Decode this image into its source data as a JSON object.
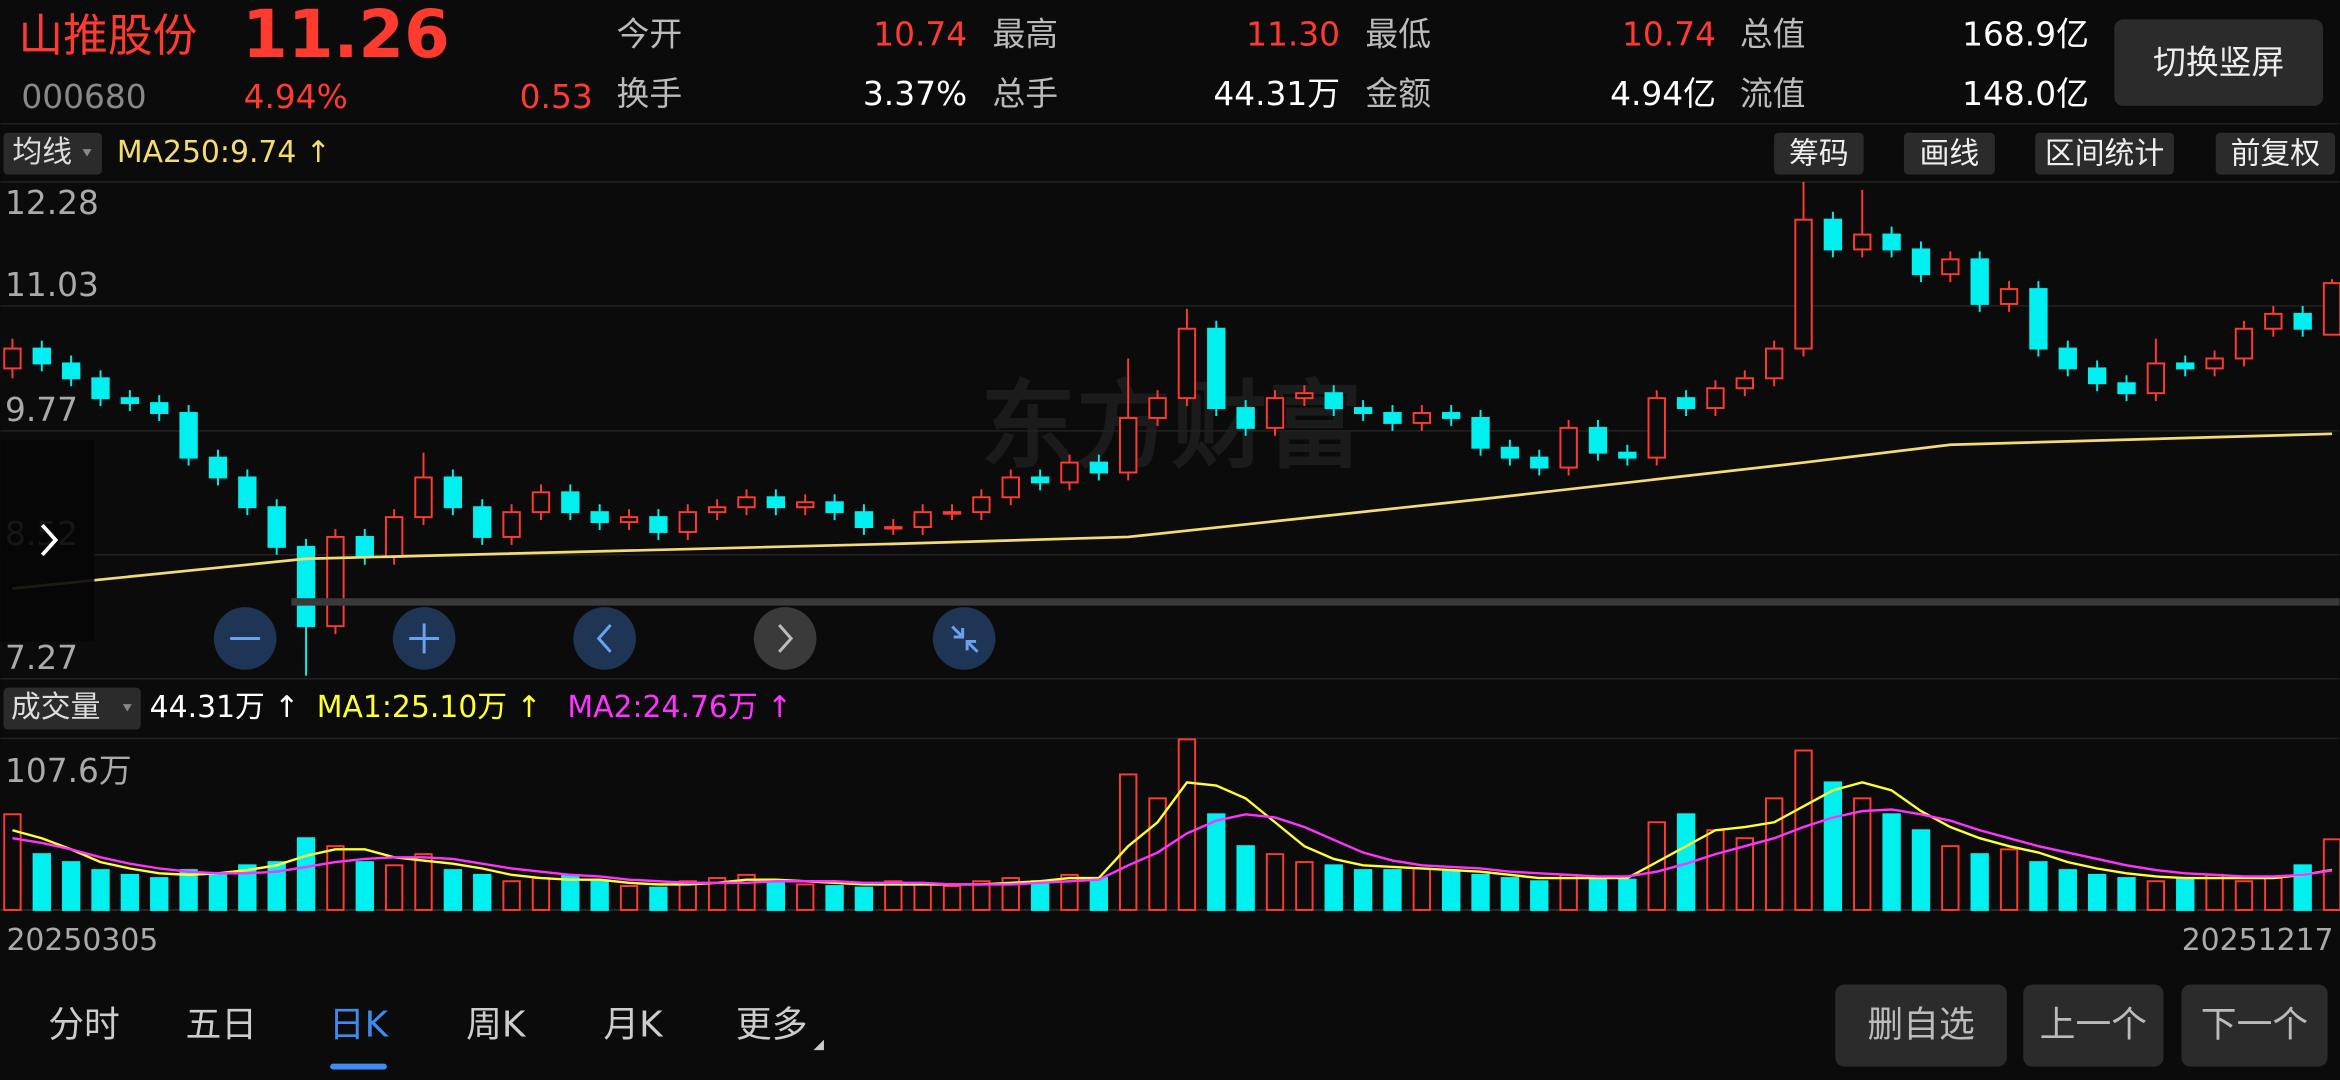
{
  "header": {
    "name": "山推股份",
    "price": "11.26",
    "code": "000680",
    "change_pct": "4.94%",
    "change": "0.53",
    "quote": [
      [
        {
          "label": "今开",
          "value": "10.74",
          "color": "#ff3b30"
        },
        {
          "label": "最高",
          "value": "11.30",
          "color": "#ff3b30"
        },
        {
          "label": "最低",
          "value": "10.74",
          "color": "#ff3b30"
        },
        {
          "label": "总值",
          "value": "168.9亿",
          "color": "#ffffff"
        }
      ],
      [
        {
          "label": "换手",
          "value": "3.37%",
          "color": "#ffffff"
        },
        {
          "label": "总手",
          "value": "44.31万",
          "color": "#ffffff"
        },
        {
          "label": "金额",
          "value": "4.94亿",
          "color": "#ffffff"
        },
        {
          "label": "流值",
          "value": "148.0亿",
          "color": "#ffffff"
        }
      ]
    ],
    "orientation_button": "切换竖屏"
  },
  "toolbar": {
    "indicator": "均线",
    "ma_label": "MA250:9.74 ↑",
    "buttons": [
      "筹码",
      "画线",
      "区间统计",
      "前复权"
    ]
  },
  "watermark": "东方财富",
  "chart_data": {
    "type": "candlestick",
    "up_color": "#ff3b30",
    "down_color": "#00f0f0",
    "ylim": [
      7.27,
      12.28
    ],
    "yticks": [
      7.27,
      8.52,
      9.77,
      11.03,
      12.28
    ],
    "candles": [
      [
        10.4,
        10.7,
        10.3,
        10.6
      ],
      [
        10.6,
        10.68,
        10.37,
        10.45
      ],
      [
        10.45,
        10.53,
        10.22,
        10.3
      ],
      [
        10.3,
        10.38,
        10.02,
        10.1
      ],
      [
        10.1,
        10.18,
        9.97,
        10.05
      ],
      [
        10.05,
        10.13,
        9.87,
        9.95
      ],
      [
        9.95,
        10.03,
        9.42,
        9.5
      ],
      [
        9.5,
        9.58,
        9.22,
        9.3
      ],
      [
        9.3,
        9.38,
        8.92,
        9.0
      ],
      [
        9.0,
        9.08,
        8.52,
        8.6
      ],
      [
        8.6,
        8.68,
        7.3,
        7.8
      ],
      [
        7.8,
        8.78,
        7.72,
        8.7
      ],
      [
        8.7,
        8.78,
        8.42,
        8.5
      ],
      [
        8.5,
        8.98,
        8.42,
        8.9
      ],
      [
        8.9,
        9.55,
        8.82,
        9.3
      ],
      [
        9.3,
        9.38,
        8.92,
        9.0
      ],
      [
        9.0,
        9.08,
        8.62,
        8.7
      ],
      [
        8.7,
        9.03,
        8.62,
        8.95
      ],
      [
        8.95,
        9.23,
        8.87,
        9.15
      ],
      [
        9.15,
        9.23,
        8.87,
        8.95
      ],
      [
        8.95,
        9.03,
        8.77,
        8.85
      ],
      [
        8.85,
        8.98,
        8.77,
        8.9
      ],
      [
        8.9,
        8.98,
        8.67,
        8.75
      ],
      [
        8.75,
        9.03,
        8.67,
        8.95
      ],
      [
        8.95,
        9.08,
        8.87,
        9.0
      ],
      [
        9.0,
        9.18,
        8.92,
        9.1
      ],
      [
        9.1,
        9.18,
        8.92,
        9.0
      ],
      [
        9.0,
        9.13,
        8.92,
        9.05
      ],
      [
        9.05,
        9.13,
        8.87,
        8.95
      ],
      [
        8.95,
        9.03,
        8.72,
        8.8
      ],
      [
        8.8,
        8.88,
        8.72,
        8.8
      ],
      [
        8.8,
        9.03,
        8.72,
        8.95
      ],
      [
        8.95,
        9.03,
        8.87,
        8.95
      ],
      [
        8.95,
        9.18,
        8.87,
        9.1
      ],
      [
        9.1,
        9.38,
        9.02,
        9.3
      ],
      [
        9.3,
        9.38,
        9.17,
        9.25
      ],
      [
        9.25,
        9.53,
        9.17,
        9.45
      ],
      [
        9.45,
        9.53,
        9.27,
        9.35
      ],
      [
        9.35,
        10.5,
        9.27,
        9.9
      ],
      [
        9.9,
        10.18,
        9.82,
        10.1
      ],
      [
        10.1,
        11.0,
        10.02,
        10.8
      ],
      [
        10.8,
        10.88,
        9.92,
        10.0
      ],
      [
        10.0,
        10.08,
        9.72,
        9.8
      ],
      [
        9.8,
        10.18,
        9.72,
        10.1
      ],
      [
        10.1,
        10.23,
        10.02,
        10.15
      ],
      [
        10.15,
        10.23,
        9.92,
        10.0
      ],
      [
        10.0,
        10.08,
        9.87,
        9.95
      ],
      [
        9.95,
        10.03,
        9.77,
        9.85
      ],
      [
        9.85,
        10.03,
        9.77,
        9.95
      ],
      [
        9.95,
        10.03,
        9.82,
        9.9
      ],
      [
        9.9,
        9.98,
        9.52,
        9.6
      ],
      [
        9.6,
        9.68,
        9.42,
        9.5
      ],
      [
        9.5,
        9.58,
        9.32,
        9.4
      ],
      [
        9.4,
        9.88,
        9.32,
        9.8
      ],
      [
        9.8,
        9.88,
        9.47,
        9.55
      ],
      [
        9.55,
        9.63,
        9.42,
        9.5
      ],
      [
        9.5,
        10.18,
        9.42,
        10.1
      ],
      [
        10.1,
        10.18,
        9.92,
        10.0
      ],
      [
        10.0,
        10.28,
        9.92,
        10.2
      ],
      [
        10.2,
        10.38,
        10.12,
        10.3
      ],
      [
        10.3,
        10.68,
        10.22,
        10.6
      ],
      [
        10.6,
        12.28,
        10.52,
        11.9
      ],
      [
        11.9,
        11.98,
        11.52,
        11.6
      ],
      [
        11.6,
        12.2,
        11.52,
        11.75
      ],
      [
        11.75,
        11.83,
        11.52,
        11.6
      ],
      [
        11.6,
        11.68,
        11.27,
        11.35
      ],
      [
        11.35,
        11.58,
        11.27,
        11.5
      ],
      [
        11.5,
        11.58,
        10.97,
        11.05
      ],
      [
        11.05,
        11.28,
        10.97,
        11.2
      ],
      [
        11.2,
        11.28,
        10.52,
        10.6
      ],
      [
        10.6,
        10.68,
        10.32,
        10.4
      ],
      [
        10.4,
        10.48,
        10.17,
        10.25
      ],
      [
        10.25,
        10.33,
        10.07,
        10.15
      ],
      [
        10.15,
        10.7,
        10.07,
        10.45
      ],
      [
        10.45,
        10.53,
        10.32,
        10.4
      ],
      [
        10.4,
        10.58,
        10.32,
        10.5
      ],
      [
        10.5,
        10.88,
        10.42,
        10.8
      ],
      [
        10.8,
        11.03,
        10.72,
        10.95
      ],
      [
        10.95,
        11.03,
        10.72,
        10.8
      ],
      [
        10.74,
        11.3,
        10.74,
        11.26
      ]
    ],
    "ma250": {
      "color": "#f3dc74",
      "index": [
        0,
        10,
        30,
        38,
        50,
        61,
        66,
        79
      ],
      "values": [
        8.18,
        8.48,
        8.63,
        8.7,
        9.08,
        9.45,
        9.63,
        9.74
      ]
    },
    "volume": {
      "label": "成交量",
      "current": "44.31万 ↑",
      "ma1_label": "MA1:25.10万 ↑",
      "ma2_label": "MA2:24.76万 ↑",
      "ylim": [
        0,
        107.6
      ],
      "yticks": [
        {
          "value": 107.6,
          "label": "107.6万"
        }
      ],
      "values": [
        60,
        35,
        30,
        25,
        22,
        20,
        25,
        22,
        28,
        30,
        45,
        40,
        30,
        28,
        35,
        25,
        22,
        18,
        20,
        22,
        18,
        15,
        14,
        18,
        20,
        22,
        18,
        16,
        15,
        14,
        18,
        16,
        15,
        18,
        20,
        18,
        22,
        20,
        85,
        70,
        107,
        60,
        40,
        35,
        30,
        28,
        25,
        25,
        26,
        24,
        22,
        20,
        18,
        22,
        20,
        19,
        55,
        60,
        50,
        45,
        70,
        100,
        80,
        70,
        60,
        50,
        40,
        35,
        38,
        30,
        25,
        22,
        20,
        18,
        20,
        22,
        18,
        20,
        28,
        44.31
      ],
      "ma1": {
        "color": "#ffff33",
        "values": [
          50,
          45,
          38,
          30,
          26,
          23,
          22,
          23,
          25,
          28,
          34,
          38,
          38,
          33,
          31,
          29,
          26,
          22,
          20,
          19,
          19,
          17,
          16,
          16,
          17,
          19,
          19,
          18,
          17,
          16,
          16,
          16,
          16,
          16,
          17,
          18,
          20,
          20,
          40,
          55,
          80,
          78,
          70,
          55,
          40,
          32,
          28,
          27,
          26,
          25,
          24,
          22,
          20,
          20,
          20,
          20,
          30,
          40,
          50,
          52,
          55,
          65,
          75,
          80,
          75,
          62,
          52,
          45,
          40,
          36,
          30,
          26,
          23,
          21,
          20,
          20,
          20,
          20,
          22,
          25.1
        ]
      },
      "ma2": {
        "color": "#ff33ff",
        "values": [
          45,
          42,
          38,
          33,
          29,
          26,
          24,
          23,
          23,
          24,
          27,
          30,
          32,
          33,
          33,
          32,
          29,
          26,
          24,
          22,
          21,
          19,
          18,
          17,
          17,
          17,
          18,
          18,
          18,
          17,
          17,
          17,
          16,
          16,
          16,
          17,
          18,
          19,
          28,
          36,
          48,
          56,
          60,
          58,
          52,
          44,
          36,
          31,
          28,
          27,
          26,
          24,
          23,
          22,
          21,
          21,
          24,
          29,
          35,
          40,
          45,
          52,
          58,
          62,
          63,
          60,
          56,
          50,
          45,
          40,
          36,
          32,
          28,
          25,
          23,
          22,
          21,
          21,
          22,
          24.76
        ]
      }
    },
    "start_date": "20250305",
    "end_date": "20251217"
  },
  "tabs": {
    "items": [
      "分时",
      "五日",
      "日K",
      "周K",
      "月K",
      "更多"
    ],
    "selected": 2
  },
  "actions": [
    "删自选",
    "上一个",
    "下一个"
  ]
}
